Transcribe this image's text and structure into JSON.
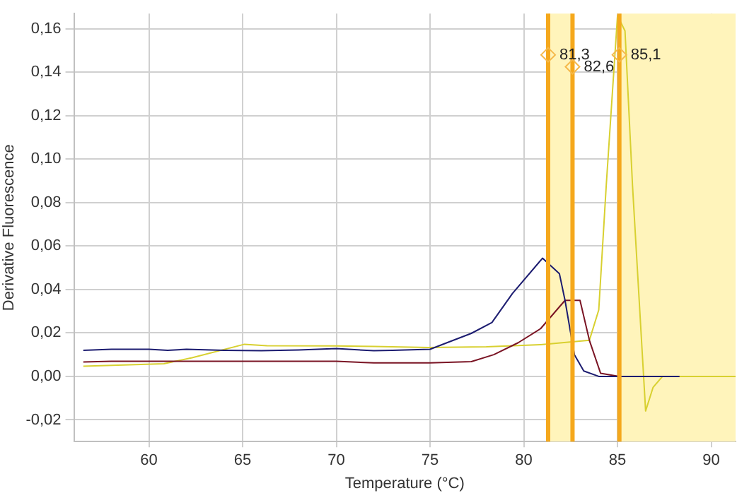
{
  "chart_data": {
    "type": "line",
    "xlabel": "Temperature (°C)",
    "ylabel": "Derivative Fluorescence",
    "xlim": [
      56,
      91.3
    ],
    "xticks": [
      60,
      65,
      70,
      75,
      80,
      85,
      90
    ],
    "ylim": [
      -0.03,
      0.167
    ],
    "yticks": [
      {
        "value": -0.02,
        "label": "-0,02"
      },
      {
        "value": 0,
        "label": "0,00"
      },
      {
        "value": 0.02,
        "label": "0,02"
      },
      {
        "value": 0.04,
        "label": "0,04"
      },
      {
        "value": 0.06,
        "label": "0,06"
      },
      {
        "value": 0.08,
        "label": "0,08"
      },
      {
        "value": 0.1,
        "label": "0,10"
      },
      {
        "value": 0.12,
        "label": "0,12"
      },
      {
        "value": 0.14,
        "label": "0,14"
      },
      {
        "value": 0.16,
        "label": "0,16"
      }
    ],
    "grid": true,
    "legend": false,
    "marker": "none",
    "line_style": "solid",
    "series": [
      {
        "color": "#1c1c70",
        "x": [
          56.5,
          58,
          60,
          61,
          62,
          64,
          66,
          68,
          70,
          72,
          73,
          75,
          75.9,
          77.2,
          78.3,
          79.4,
          81.0,
          81.9,
          82.2,
          82.7,
          83.2,
          84.0,
          85,
          86,
          88.3
        ],
        "values": [
          0.012,
          0.0125,
          0.0125,
          0.012,
          0.0125,
          0.012,
          0.0118,
          0.0122,
          0.0128,
          0.0118,
          0.012,
          0.0125,
          0.0155,
          0.0198,
          0.0248,
          0.0382,
          0.0544,
          0.0473,
          0.035,
          0.01,
          0.0025,
          0.0,
          0.0,
          0.0,
          0.0
        ]
      },
      {
        "color": "#7a1424",
        "x": [
          56.5,
          58,
          60,
          65,
          70,
          72,
          75,
          77.2,
          78.4,
          79.7,
          80.9,
          82.2,
          83.0,
          83.5,
          84.1,
          85.1,
          88.3
        ],
        "values": [
          0.0066,
          0.007,
          0.007,
          0.007,
          0.007,
          0.0062,
          0.0062,
          0.0068,
          0.01,
          0.0155,
          0.022,
          0.035,
          0.035,
          0.0166,
          0.0014,
          0.0,
          0.0
        ]
      },
      {
        "color": "#d8d030",
        "x": [
          56.5,
          60.8,
          62.3,
          65.1,
          66.3,
          70,
          72,
          74.9,
          78,
          80.9,
          83.5,
          84.0,
          84.4,
          85.0,
          85.4,
          85.8,
          86.5,
          86.9,
          87.4,
          89,
          91.3
        ],
        "values": [
          0.0047,
          0.0058,
          0.0086,
          0.0148,
          0.0141,
          0.014,
          0.0138,
          0.0133,
          0.0136,
          0.0146,
          0.0166,
          0.0306,
          0.088,
          0.166,
          0.159,
          0.088,
          -0.0159,
          -0.005,
          0.0,
          0.0,
          0.0
        ]
      }
    ],
    "ref_lines": [
      {
        "axis": "x",
        "value": 81.3,
        "color": "#f5a81c"
      },
      {
        "axis": "x",
        "value": 82.6,
        "color": "#f5a81c"
      },
      {
        "axis": "x",
        "value": 85.1,
        "color": "#f5a81c"
      }
    ],
    "bands": [
      {
        "axis": "x",
        "from": 81.3,
        "to": 82.6,
        "color": "#fff4bb"
      },
      {
        "axis": "x",
        "from": 85.1,
        "to": 91.3,
        "color": "#fff4bb"
      }
    ],
    "annotations": [
      {
        "text": "81,3",
        "x": 81.3,
        "y": 0.148
      },
      {
        "text": "82,6",
        "x": 82.6,
        "y": 0.1425
      },
      {
        "text": "85,1",
        "x": 85.1,
        "y": 0.148
      }
    ]
  }
}
